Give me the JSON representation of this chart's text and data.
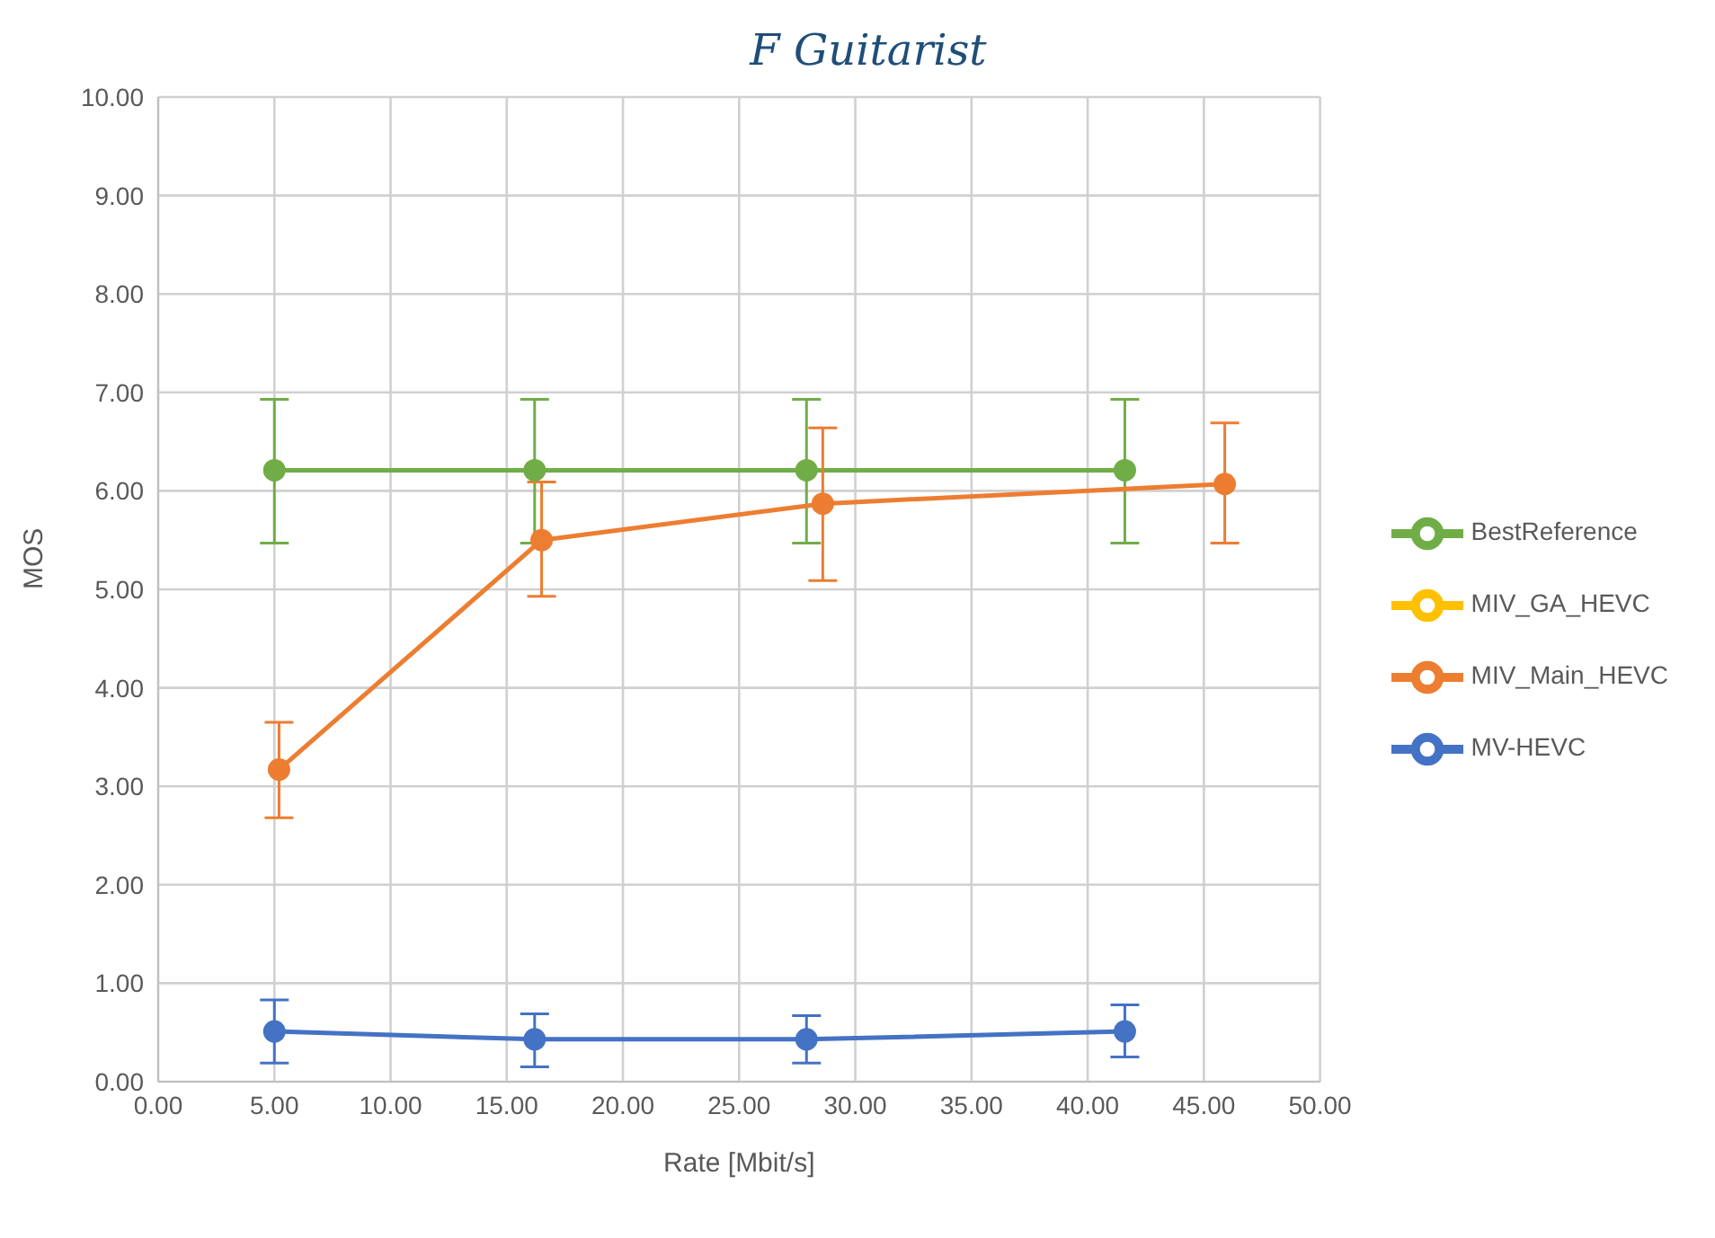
{
  "chart_data": {
    "type": "line",
    "title": "F Guitarist",
    "xlabel": "Rate [Mbit/s]",
    "ylabel": "MOS",
    "xlim": [
      0,
      50
    ],
    "xticks": [
      {
        "value": 0,
        "label": "0.00"
      },
      {
        "value": 5,
        "label": "5.00"
      },
      {
        "value": 10,
        "label": "10.00"
      },
      {
        "value": 15,
        "label": "15.00"
      },
      {
        "value": 20,
        "label": "20.00"
      },
      {
        "value": 25,
        "label": "25.00"
      },
      {
        "value": 30,
        "label": "30.00"
      },
      {
        "value": 35,
        "label": "35.00"
      },
      {
        "value": 40,
        "label": "40.00"
      },
      {
        "value": 45,
        "label": "45.00"
      },
      {
        "value": 50,
        "label": "50.00"
      }
    ],
    "ylim": [
      0,
      10
    ],
    "yticks": [
      {
        "value": 0,
        "label": "0.00"
      },
      {
        "value": 1,
        "label": "1.00"
      },
      {
        "value": 2,
        "label": "2.00"
      },
      {
        "value": 3,
        "label": "3.00"
      },
      {
        "value": 4,
        "label": "4.00"
      },
      {
        "value": 5,
        "label": "5.00"
      },
      {
        "value": 6,
        "label": "6.00"
      },
      {
        "value": 7,
        "label": "7.00"
      },
      {
        "value": 8,
        "label": "8.00"
      },
      {
        "value": 9,
        "label": "9.00"
      },
      {
        "value": 10,
        "label": "10.00"
      }
    ],
    "grid": true,
    "legend": "right",
    "marker": "circle",
    "line_style": "solid",
    "series": [
      {
        "name": "MV-HEVC",
        "color": "#4472c4",
        "x": [
          5.0,
          16.2,
          27.9,
          41.6
        ],
        "values": [
          0.51,
          0.43,
          0.43,
          0.51
        ],
        "errors": [
          [
            0.19,
            0.83
          ],
          [
            0.15,
            0.69
          ],
          [
            0.19,
            0.67
          ],
          [
            0.25,
            0.78
          ]
        ]
      },
      {
        "name": "MIV_Main_HEVC",
        "color": "#ed7d31",
        "x": [
          5.2,
          16.5,
          28.6,
          45.9
        ],
        "values": [
          3.17,
          5.5,
          5.87,
          6.07
        ],
        "errors": [
          [
            2.68,
            3.65
          ],
          [
            4.93,
            6.09
          ],
          [
            5.09,
            6.64
          ],
          [
            5.47,
            6.69
          ]
        ]
      },
      {
        "name": "MIV_GA_HEVC",
        "color": "#ffc000"
      },
      {
        "name": "BestReference",
        "color": "#70ad47",
        "x": [
          5.0,
          16.2,
          27.9,
          41.6
        ],
        "values": [
          6.21,
          6.21,
          6.21,
          6.21
        ],
        "errors": [
          [
            5.47,
            6.93
          ],
          [
            5.47,
            6.93
          ],
          [
            5.47,
            6.93
          ],
          [
            5.47,
            6.93
          ]
        ]
      }
    ]
  }
}
